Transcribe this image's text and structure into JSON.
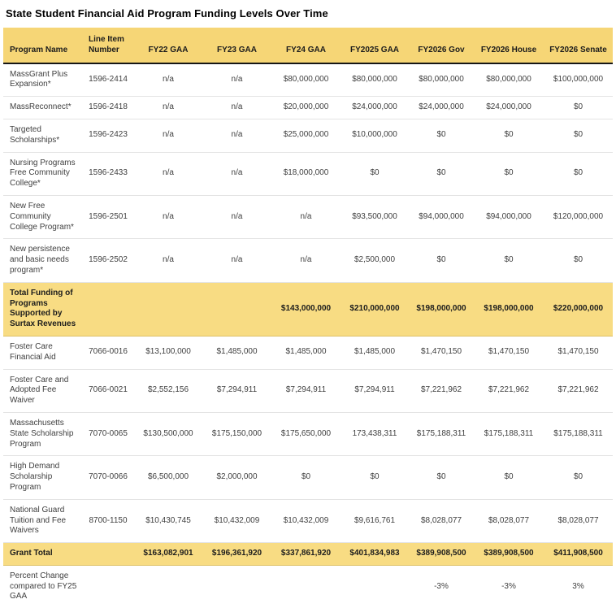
{
  "page": {
    "title": "State Student Financial Aid Program Funding Levels Over Time"
  },
  "colors": {
    "header_background": "#F6D676",
    "summary_row_background": "#F8DC83",
    "header_border": "#161616",
    "row_divider": "#E4E4E4",
    "header_text": "#1C1C1C",
    "body_text": "#3F3F3F"
  },
  "chart_data": {
    "type": "table",
    "title": "State Student Financial Aid Program Funding Levels Over Time",
    "columns": [
      "Program Name",
      "Line Item Number",
      "FY22 GAA",
      "FY23 GAA",
      "FY24 GAA",
      "FY2025 GAA",
      "FY2026 Gov",
      "FY2026 House",
      "FY2026 Senate"
    ],
    "rows": [
      {
        "highlight": false,
        "cells": [
          "MassGrant Plus Expansion*",
          "1596-2414",
          "n/a",
          "n/a",
          "$80,000,000",
          "$80,000,000",
          "$80,000,000",
          "$80,000,000",
          "$100,000,000"
        ]
      },
      {
        "highlight": false,
        "cells": [
          "MassReconnect*",
          "1596-2418",
          "n/a",
          "n/a",
          "$20,000,000",
          "$24,000,000",
          "$24,000,000",
          "$24,000,000",
          "$0"
        ]
      },
      {
        "highlight": false,
        "cells": [
          "Targeted Scholarships*",
          "1596-2423",
          "n/a",
          "n/a",
          "$25,000,000",
          "$10,000,000",
          "$0",
          "$0",
          "$0"
        ]
      },
      {
        "highlight": false,
        "cells": [
          "Nursing Programs Free Community College*",
          "1596-2433",
          "n/a",
          "n/a",
          "$18,000,000",
          "$0",
          "$0",
          "$0",
          "$0"
        ]
      },
      {
        "highlight": false,
        "cells": [
          "New Free Community College Program*",
          "1596-2501",
          "n/a",
          "n/a",
          "n/a",
          "$93,500,000",
          "$94,000,000",
          "$94,000,000",
          "$120,000,000"
        ]
      },
      {
        "highlight": false,
        "cells": [
          "New persistence and basic needs program*",
          "1596-2502",
          "n/a",
          "n/a",
          "n/a",
          "$2,500,000",
          "$0",
          "$0",
          "$0"
        ]
      },
      {
        "highlight": true,
        "cells": [
          "Total Funding of Programs Supported by Surtax Revenues",
          "",
          "",
          "",
          "$143,000,000",
          "$210,000,000",
          "$198,000,000",
          "$198,000,000",
          "$220,000,000"
        ]
      },
      {
        "highlight": false,
        "cells": [
          "Foster Care Financial Aid",
          "7066-0016",
          "$13,100,000",
          "$1,485,000",
          "$1,485,000",
          "$1,485,000",
          "$1,470,150",
          "$1,470,150",
          "$1,470,150"
        ]
      },
      {
        "highlight": false,
        "cells": [
          "Foster Care and Adopted Fee Waiver",
          "7066-0021",
          "$2,552,156",
          "$7,294,911",
          "$7,294,911",
          "$7,294,911",
          "$7,221,962",
          "$7,221,962",
          "$7,221,962"
        ]
      },
      {
        "highlight": false,
        "cells": [
          "Massachusetts State Scholarship Program",
          "7070-0065",
          "$130,500,000",
          "$175,150,000",
          "$175,650,000",
          "173,438,311",
          "$175,188,311",
          "$175,188,311",
          "$175,188,311"
        ]
      },
      {
        "highlight": false,
        "cells": [
          "High Demand Scholarship Program",
          "7070-0066",
          "$6,500,000",
          "$2,000,000",
          "$0",
          "$0",
          "$0",
          "$0",
          "$0"
        ]
      },
      {
        "highlight": false,
        "cells": [
          "National Guard Tuition and Fee Waivers",
          "8700-1150",
          "$10,430,745",
          "$10,432,009",
          "$10,432,009",
          "$9,616,761",
          "$8,028,077",
          "$8,028,077",
          "$8,028,077"
        ]
      },
      {
        "highlight": true,
        "cells": [
          "Grant Total",
          "",
          "$163,082,901",
          "$196,361,920",
          "$337,861,920",
          "$401,834,983",
          "$389,908,500",
          "$389,908,500",
          "$411,908,500"
        ]
      },
      {
        "highlight": false,
        "cells": [
          "Percent Change compared to FY25 GAA",
          "",
          "",
          "",
          "",
          "",
          "-3%",
          "-3%",
          "3%"
        ]
      }
    ]
  }
}
